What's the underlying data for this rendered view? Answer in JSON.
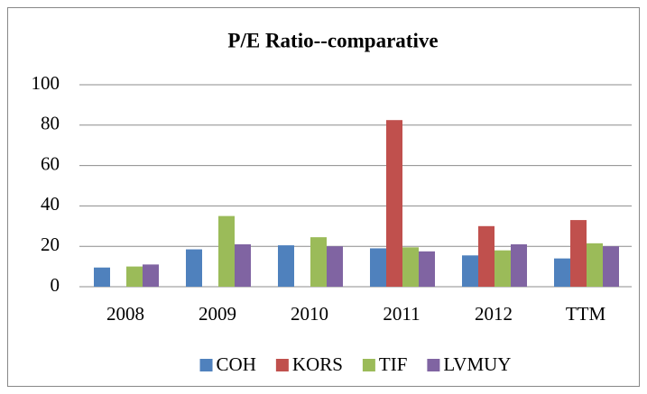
{
  "chart_data": {
    "type": "bar",
    "title": "P/E Ratio--comparative",
    "categories": [
      "2008",
      "2009",
      "2010",
      "2011",
      "2012",
      "TTM"
    ],
    "series": [
      {
        "name": "COH",
        "color": "#4f81bd",
        "values": [
          9.5,
          18.5,
          20.5,
          19,
          15.5,
          14
        ]
      },
      {
        "name": "KORS",
        "color": "#c0504d",
        "values": [
          null,
          null,
          null,
          82.5,
          30,
          33
        ]
      },
      {
        "name": "TIF",
        "color": "#9bbb59",
        "values": [
          10,
          35,
          24.5,
          19.5,
          18,
          21.5
        ]
      },
      {
        "name": "LVMUY",
        "color": "#8064a2",
        "values": [
          11,
          21,
          20,
          17.5,
          21,
          20
        ]
      }
    ],
    "ylim": [
      0,
      100
    ],
    "yticks": [
      0,
      20,
      40,
      60,
      80,
      100
    ],
    "grid": true,
    "legend": "bottom"
  }
}
